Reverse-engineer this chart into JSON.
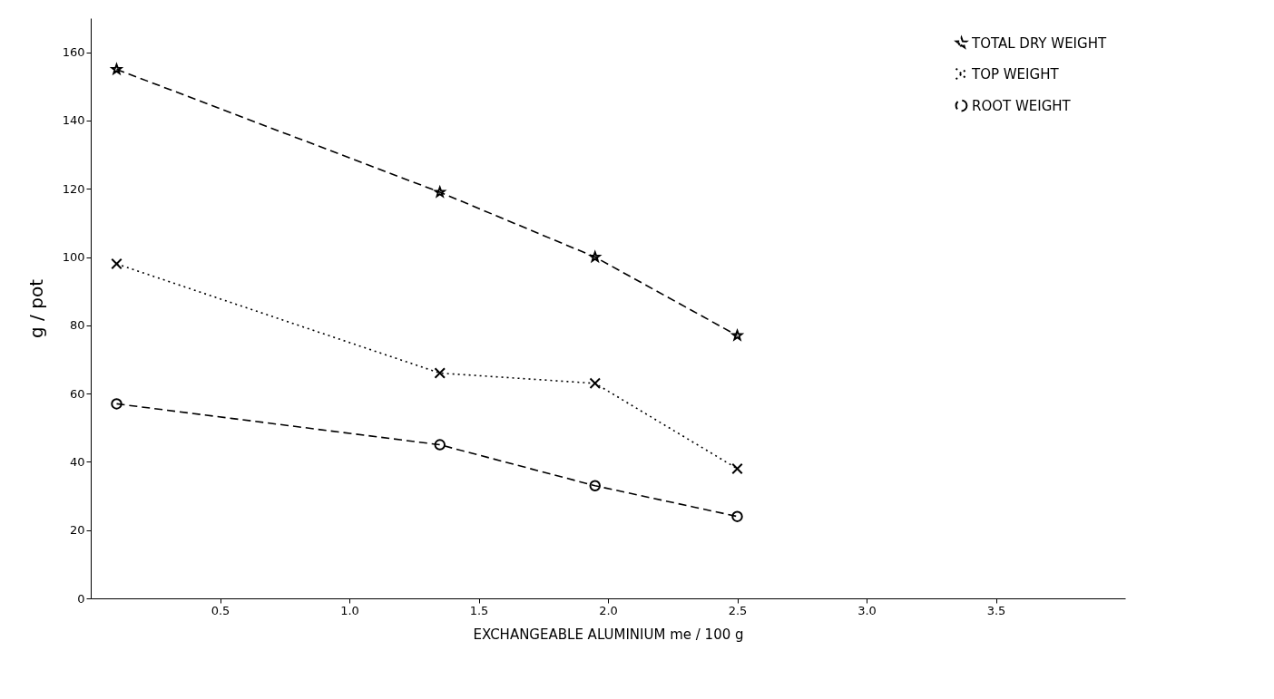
{
  "chart_data": {
    "type": "line",
    "xlabel": "EXCHANGEABLE ALUMINIUM    me / 100 g",
    "ylabel": "g / pot",
    "x": [
      0.1,
      1.35,
      1.95,
      2.5
    ],
    "series": [
      {
        "name": "TOTAL DRY WEIGHT",
        "color": "#000000",
        "values": [
          155,
          119,
          100,
          77
        ],
        "marker": "star",
        "line_style": "dashed"
      },
      {
        "name": "TOP WEIGHT",
        "color": "#000000",
        "values": [
          98,
          66,
          63,
          38
        ],
        "marker": "cross",
        "line_style": "dotted"
      },
      {
        "name": "ROOT WEIGHT",
        "color": "#000000",
        "values": [
          57,
          45,
          33,
          24
        ],
        "marker": "circle",
        "line_style": "dashed"
      }
    ],
    "xlim": [
      0,
      4
    ],
    "xticks": [
      0.5,
      {
        "value": 1,
        "label": "1.0"
      },
      1.5,
      {
        "value": 2,
        "label": "2.0"
      },
      2.5,
      {
        "value": 3,
        "label": "3.0"
      },
      3.5
    ],
    "ylim": [
      0,
      170
    ],
    "yticks": [
      0,
      20,
      40,
      60,
      80,
      100,
      120,
      140,
      160
    ],
    "grid": false,
    "legend": "top right"
  }
}
